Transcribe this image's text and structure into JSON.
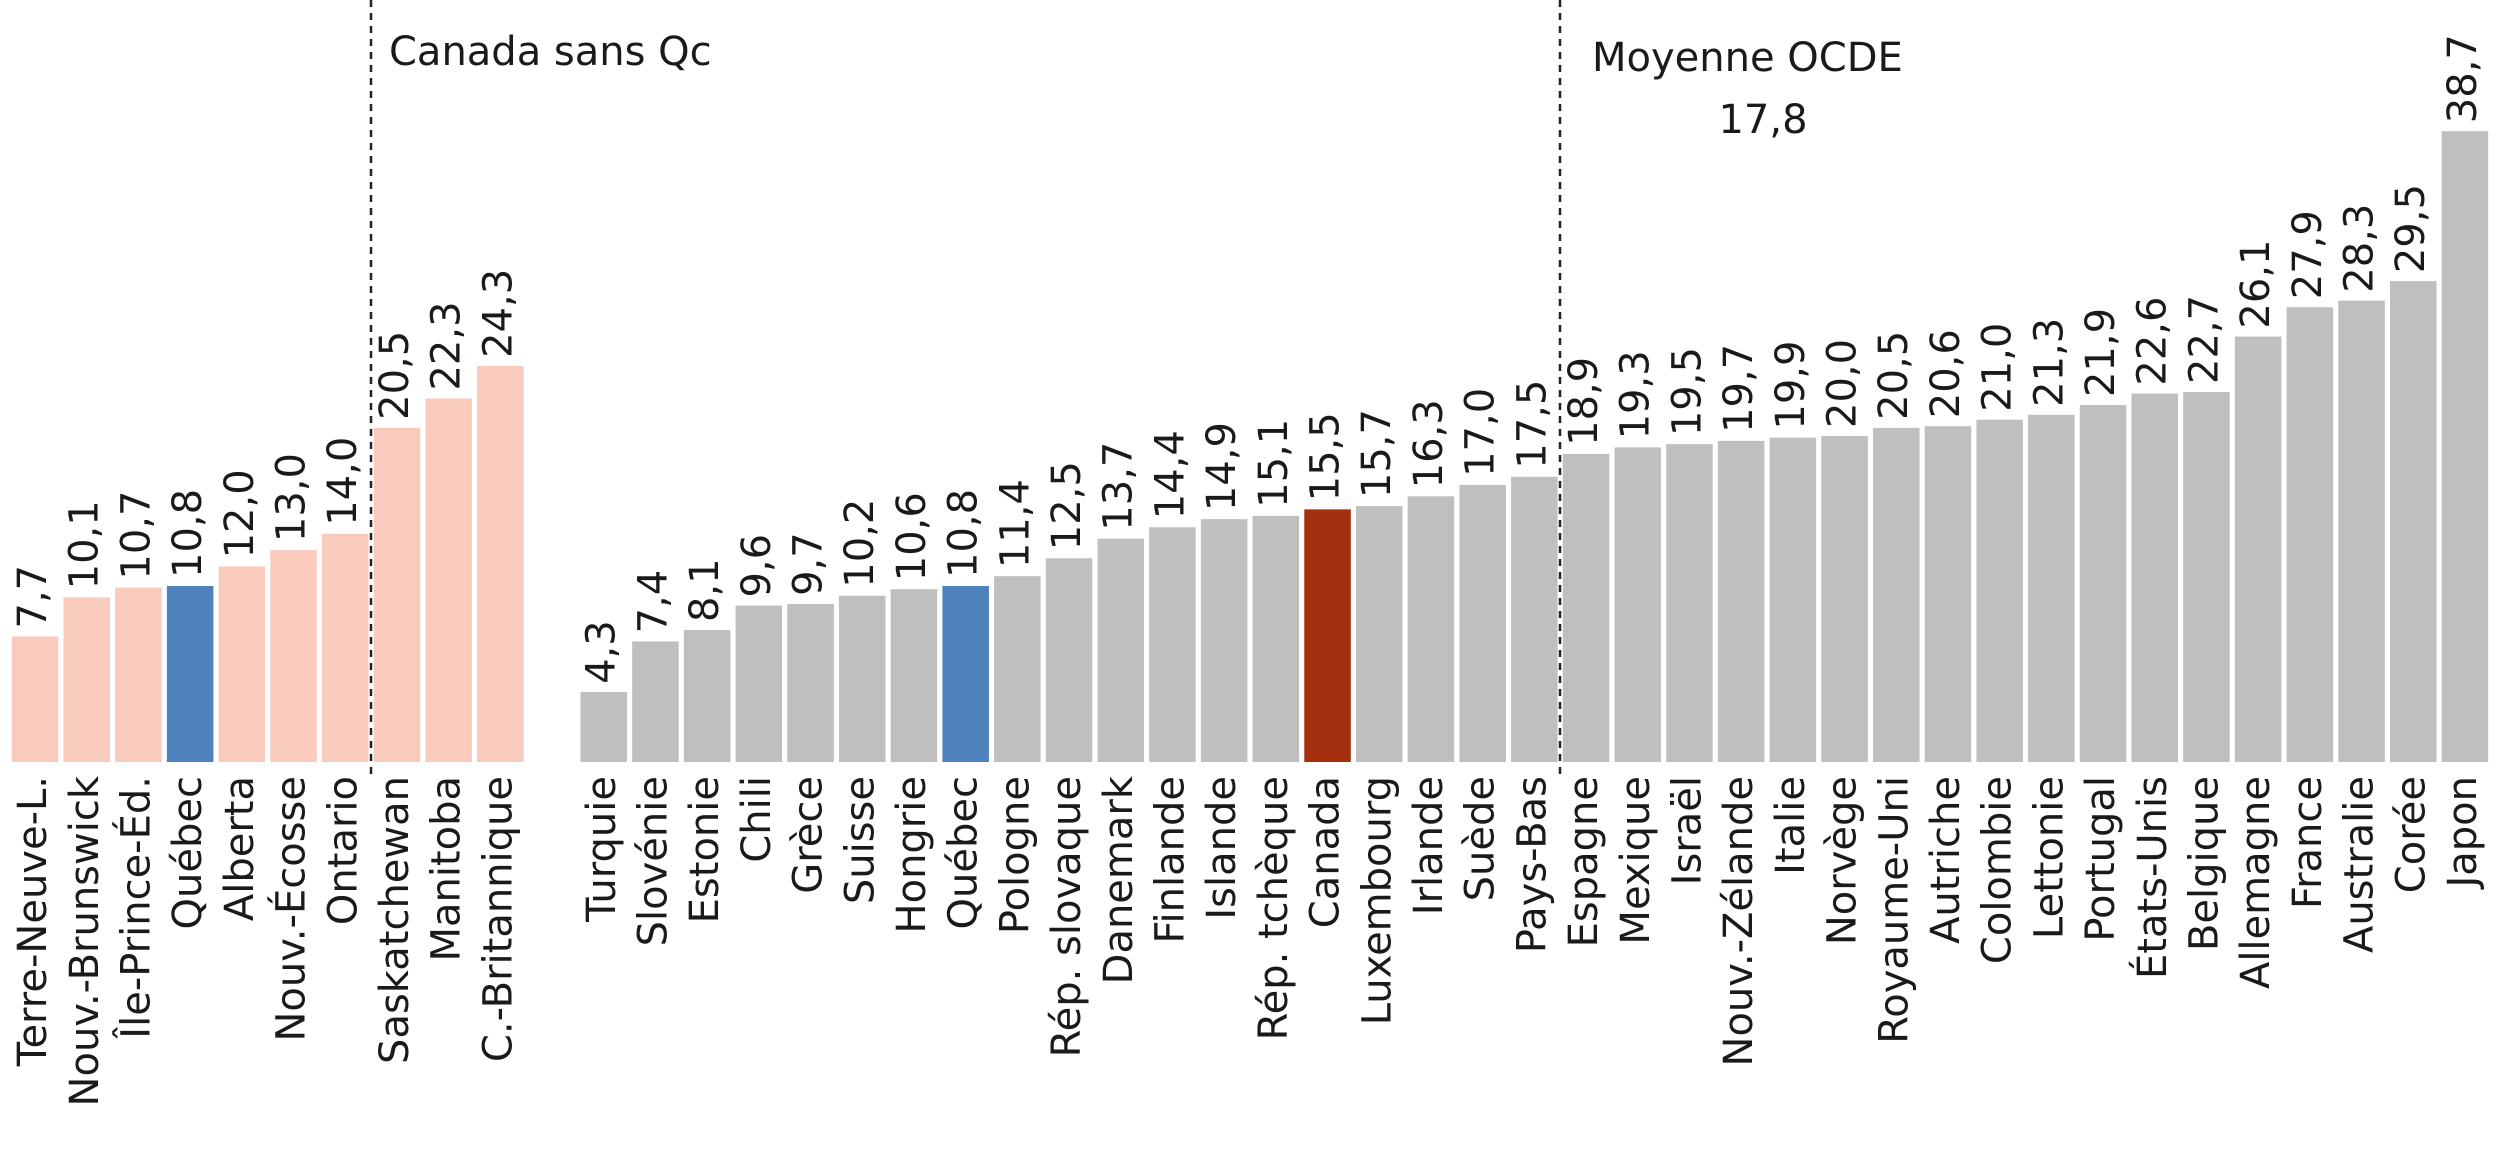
{
  "chart_data": {
    "type": "bar",
    "annotations": [
      "Canada sans Qc",
      "Moyenne OCDE",
      "17,8"
    ],
    "categories": [
      "Terre-Neuve-L.",
      "Nouv.-Brunswick",
      "Île-Prince-Éd.",
      "Québec",
      "Alberta",
      "Nouv.-Écosse",
      "Ontario",
      "Saskatchewan",
      "Manitoba",
      "C.-Britannique",
      null,
      "Turquie",
      "Slovénie",
      "Estonie",
      "Chili",
      "Grèce",
      "Suisse",
      "Hongrie",
      "Québec",
      "Pologne",
      "Rép. slovaque",
      "Danemark",
      "Finlande",
      "Islande",
      "Rép. tchèque",
      "Canada",
      "Luxembourg",
      "Irlande",
      "Suède",
      "Pays-Bas",
      "Espagne",
      "Mexique",
      "Israël",
      "Nouv.-Zélande",
      "Italie",
      "Norvège",
      "Royaume-Uni",
      "Autriche",
      "Colombie",
      "Lettonie",
      "Portugal",
      "États-Unis",
      "Belgique",
      "Allemagne",
      "France",
      "Australie",
      "Corée",
      "Japon"
    ],
    "values": [
      7.7,
      10.1,
      10.7,
      10.8,
      12.0,
      13.0,
      14.0,
      20.5,
      22.3,
      24.3,
      null,
      4.3,
      7.4,
      8.1,
      9.6,
      9.7,
      10.2,
      10.6,
      10.8,
      11.4,
      12.5,
      13.7,
      14.4,
      14.9,
      15.1,
      15.5,
      15.7,
      16.3,
      17.0,
      17.5,
      18.9,
      19.3,
      19.5,
      19.7,
      19.9,
      20.0,
      20.5,
      20.6,
      21.0,
      21.3,
      21.9,
      22.6,
      22.7,
      26.1,
      27.9,
      28.3,
      29.5,
      38.7
    ],
    "value_labels": [
      "7,7",
      "10,1",
      "10,7",
      "10,8",
      "12,0",
      "13,0",
      "14,0",
      "20,5",
      "22,3",
      "24,3",
      null,
      "4,3",
      "7,4",
      "8,1",
      "9,6",
      "9,7",
      "10,2",
      "10,6",
      "10,8",
      "11,4",
      "12,5",
      "13,7",
      "14,4",
      "14,9",
      "15,1",
      "15,5",
      "15,7",
      "16,3",
      "17,0",
      "17,5",
      "18,9",
      "19,3",
      "19,5",
      "19,7",
      "19,9",
      "20,0",
      "20,5",
      "20,6",
      "21,0",
      "21,3",
      "21,9",
      "22,6",
      "22,7",
      "26,1",
      "27,9",
      "28,3",
      "29,5",
      "38,7"
    ],
    "colors": [
      "#f9cbbd",
      "#f9cbbd",
      "#f9cbbd",
      "#4f81bd",
      "#f9cbbd",
      "#f9cbbd",
      "#f9cbbd",
      "#f9cbbd",
      "#f9cbbd",
      "#f9cbbd",
      null,
      "#bfbfbf",
      "#bfbfbf",
      "#bfbfbf",
      "#bfbfbf",
      "#bfbfbf",
      "#bfbfbf",
      "#bfbfbf",
      "#4f81bd",
      "#bfbfbf",
      "#bfbfbf",
      "#bfbfbf",
      "#bfbfbf",
      "#bfbfbf",
      "#bfbfbf",
      "#a5300f",
      "#bfbfbf",
      "#bfbfbf",
      "#bfbfbf",
      "#bfbfbf",
      "#bfbfbf",
      "#bfbfbf",
      "#bfbfbf",
      "#bfbfbf",
      "#bfbfbf",
      "#bfbfbf",
      "#bfbfbf",
      "#bfbfbf",
      "#bfbfbf",
      "#bfbfbf",
      "#bfbfbf",
      "#bfbfbf",
      "#bfbfbf",
      "#bfbfbf",
      "#bfbfbf",
      "#bfbfbf",
      "#bfbfbf",
      "#bfbfbf"
    ],
    "ylim": [
      0,
      40
    ]
  }
}
